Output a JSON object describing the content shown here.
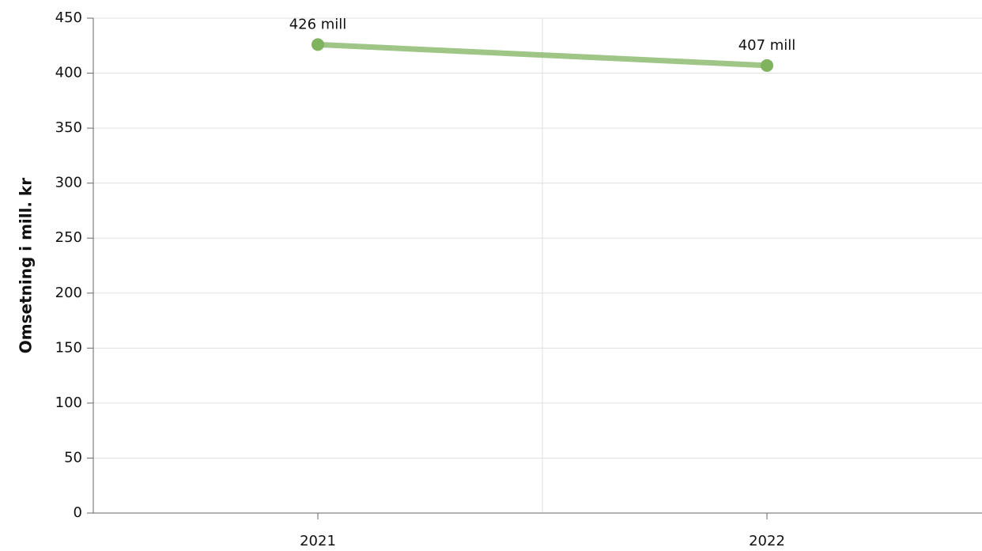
{
  "chart_data": {
    "type": "line",
    "y_label": "Omsetning i mill. kr",
    "categories": [
      "2021",
      "2022"
    ],
    "values": [
      426,
      407
    ],
    "value_labels": [
      "426 mill",
      "407 mill"
    ],
    "color": "#7fb35e",
    "ylim": [
      0,
      450
    ],
    "yticks": [
      0,
      50,
      100,
      150,
      200,
      250,
      300,
      350,
      400,
      450
    ],
    "grid": true
  }
}
